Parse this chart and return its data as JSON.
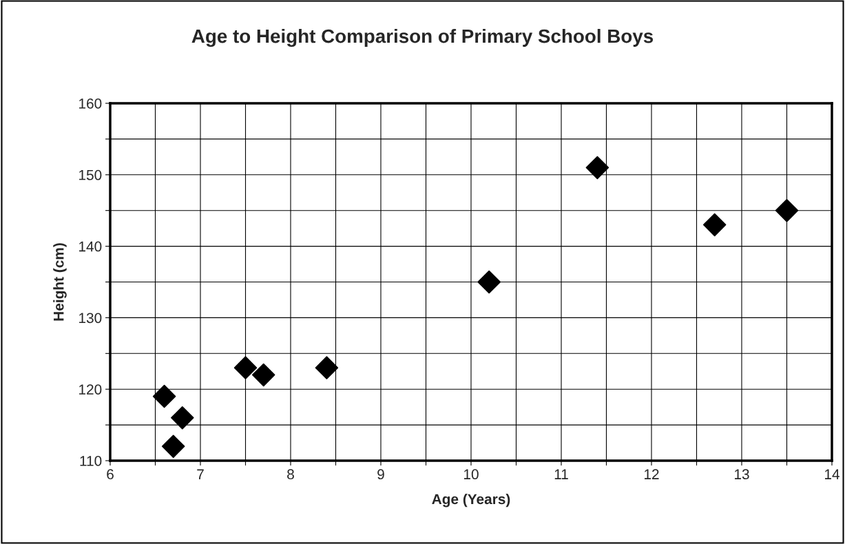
{
  "chart_data": {
    "type": "scatter",
    "title": "Age to Height Comparison of Primary School Boys",
    "xlabel": "Age (Years)",
    "ylabel": "Height (cm)",
    "x": [
      6.6,
      6.7,
      6.8,
      7.5,
      7.7,
      8.4,
      10.2,
      11.4,
      12.7,
      13.5
    ],
    "series": [
      {
        "color": "#000000",
        "values": [
          119,
          112,
          116,
          123,
          122,
          123,
          135,
          151,
          143,
          145
        ]
      }
    ],
    "marker": "diamond",
    "grid": true,
    "xlim": [
      6,
      14
    ],
    "ylim": [
      110,
      160
    ],
    "xticks": [
      6,
      {
        "value": 6.5,
        "label": null
      },
      7,
      {
        "value": 7.5,
        "label": null
      },
      8,
      {
        "value": 8.5,
        "label": null
      },
      9,
      {
        "value": 9.5,
        "label": null
      },
      10,
      {
        "value": 10.5,
        "label": null
      },
      11,
      {
        "value": 11.5,
        "label": null
      },
      12,
      {
        "value": 12.5,
        "label": null
      },
      13,
      {
        "value": 13.5,
        "label": null
      },
      14
    ],
    "yticks": [
      110,
      {
        "value": 115,
        "label": null
      },
      120,
      {
        "value": 125,
        "label": null
      },
      130,
      {
        "value": 135,
        "label": null
      },
      140,
      {
        "value": 145,
        "label": null
      },
      150,
      {
        "value": 155,
        "label": null
      },
      160
    ]
  }
}
